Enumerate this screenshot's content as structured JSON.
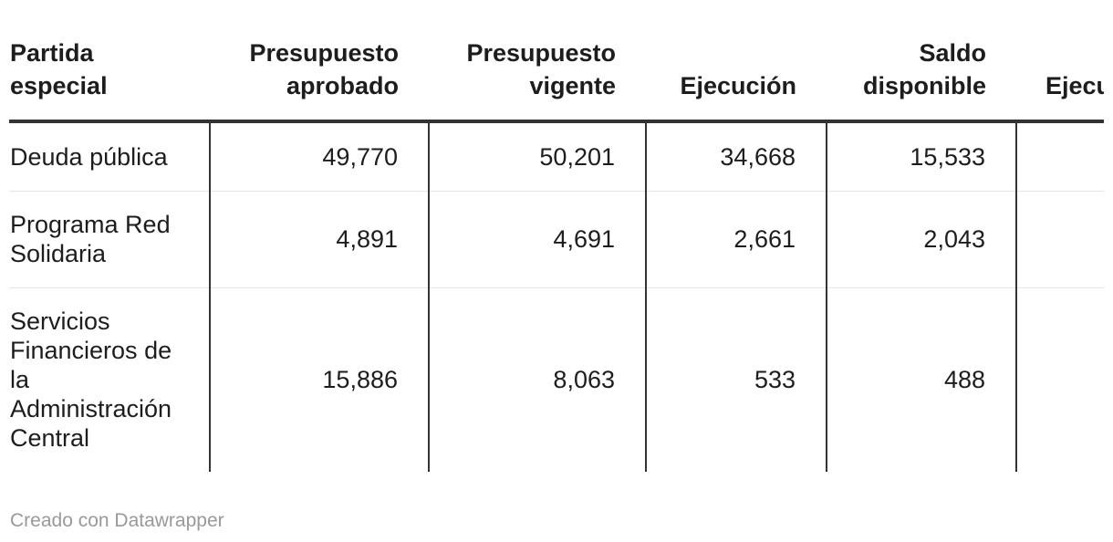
{
  "chart_data": {
    "type": "table",
    "columns": [
      "Partida especial",
      "Presupuesto aprobado",
      "Presupuesto vigente",
      "Ejecución",
      "Saldo disponible",
      "Ejecución porcentual"
    ],
    "rows": [
      [
        "Deuda pública",
        "49,770",
        "50,201",
        "34,668",
        "15,533",
        ""
      ],
      [
        "Programa Red Solidaria",
        "4,891",
        "4,691",
        "2,661",
        "2,043",
        ""
      ],
      [
        "Servicios Financieros de la Administración Central",
        "15,886",
        "8,063",
        "533",
        "488",
        ""
      ]
    ]
  },
  "footer": {
    "credit": "Creado con Datawrapper"
  }
}
